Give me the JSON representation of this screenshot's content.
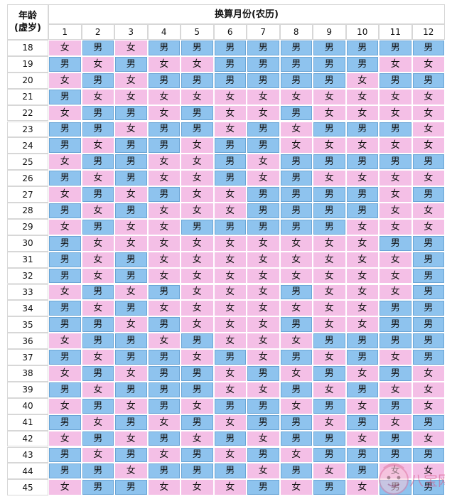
{
  "header": {
    "age_title_line1": "年龄",
    "age_title_line2": "(虚岁)",
    "month_title": "换算月份(农历)"
  },
  "months": [
    "1",
    "2",
    "3",
    "4",
    "5",
    "6",
    "7",
    "8",
    "9",
    "10",
    "11",
    "12"
  ],
  "rows": [
    {
      "age": "18",
      "cells": [
        "女",
        "男",
        "女",
        "男",
        "男",
        "男",
        "男",
        "男",
        "男",
        "男",
        "男",
        "男"
      ]
    },
    {
      "age": "19",
      "cells": [
        "男",
        "女",
        "男",
        "女",
        "女",
        "男",
        "男",
        "男",
        "男",
        "男",
        "女",
        "女"
      ]
    },
    {
      "age": "20",
      "cells": [
        "女",
        "男",
        "女",
        "男",
        "男",
        "男",
        "男",
        "男",
        "男",
        "女",
        "男",
        "男"
      ]
    },
    {
      "age": "21",
      "cells": [
        "男",
        "女",
        "女",
        "女",
        "女",
        "女",
        "女",
        "女",
        "女",
        "女",
        "女",
        "女"
      ]
    },
    {
      "age": "22",
      "cells": [
        "女",
        "男",
        "男",
        "女",
        "男",
        "女",
        "女",
        "男",
        "女",
        "女",
        "女",
        "女"
      ]
    },
    {
      "age": "23",
      "cells": [
        "男",
        "男",
        "女",
        "男",
        "男",
        "女",
        "男",
        "女",
        "男",
        "男",
        "男",
        "女"
      ]
    },
    {
      "age": "24",
      "cells": [
        "男",
        "女",
        "男",
        "男",
        "女",
        "男",
        "男",
        "女",
        "女",
        "女",
        "女",
        "女"
      ]
    },
    {
      "age": "25",
      "cells": [
        "女",
        "男",
        "男",
        "女",
        "女",
        "男",
        "女",
        "男",
        "男",
        "男",
        "男",
        "男"
      ]
    },
    {
      "age": "26",
      "cells": [
        "男",
        "女",
        "男",
        "女",
        "女",
        "男",
        "女",
        "男",
        "女",
        "女",
        "女",
        "女"
      ]
    },
    {
      "age": "27",
      "cells": [
        "女",
        "男",
        "女",
        "男",
        "女",
        "女",
        "男",
        "男",
        "男",
        "男",
        "女",
        "男"
      ]
    },
    {
      "age": "28",
      "cells": [
        "男",
        "女",
        "男",
        "女",
        "女",
        "女",
        "男",
        "男",
        "男",
        "男",
        "女",
        "女"
      ]
    },
    {
      "age": "29",
      "cells": [
        "女",
        "男",
        "女",
        "女",
        "男",
        "男",
        "男",
        "男",
        "男",
        "女",
        "女",
        "女"
      ]
    },
    {
      "age": "30",
      "cells": [
        "男",
        "女",
        "女",
        "女",
        "女",
        "女",
        "女",
        "女",
        "女",
        "女",
        "男",
        "男"
      ]
    },
    {
      "age": "31",
      "cells": [
        "男",
        "女",
        "男",
        "女",
        "女",
        "女",
        "女",
        "女",
        "女",
        "女",
        "女",
        "男"
      ]
    },
    {
      "age": "32",
      "cells": [
        "男",
        "女",
        "男",
        "女",
        "女",
        "女",
        "女",
        "女",
        "女",
        "女",
        "女",
        "男"
      ]
    },
    {
      "age": "33",
      "cells": [
        "女",
        "男",
        "女",
        "男",
        "女",
        "女",
        "女",
        "男",
        "女",
        "女",
        "女",
        "男"
      ]
    },
    {
      "age": "34",
      "cells": [
        "男",
        "女",
        "男",
        "女",
        "女",
        "女",
        "女",
        "女",
        "女",
        "女",
        "男",
        "男"
      ]
    },
    {
      "age": "35",
      "cells": [
        "男",
        "男",
        "女",
        "男",
        "女",
        "女",
        "女",
        "男",
        "女",
        "女",
        "男",
        "男"
      ]
    },
    {
      "age": "36",
      "cells": [
        "女",
        "男",
        "男",
        "女",
        "男",
        "女",
        "女",
        "女",
        "男",
        "男",
        "男",
        "男"
      ]
    },
    {
      "age": "37",
      "cells": [
        "男",
        "女",
        "男",
        "男",
        "女",
        "男",
        "女",
        "男",
        "女",
        "男",
        "女",
        "男"
      ]
    },
    {
      "age": "38",
      "cells": [
        "女",
        "男",
        "女",
        "男",
        "男",
        "女",
        "男",
        "女",
        "男",
        "女",
        "男",
        "女"
      ]
    },
    {
      "age": "39",
      "cells": [
        "男",
        "女",
        "男",
        "男",
        "男",
        "女",
        "女",
        "男",
        "女",
        "男",
        "女",
        "女"
      ]
    },
    {
      "age": "40",
      "cells": [
        "女",
        "男",
        "女",
        "男",
        "女",
        "男",
        "男",
        "女",
        "男",
        "女",
        "男",
        "女"
      ]
    },
    {
      "age": "41",
      "cells": [
        "男",
        "女",
        "男",
        "女",
        "男",
        "女",
        "男",
        "男",
        "女",
        "男",
        "女",
        "男"
      ]
    },
    {
      "age": "42",
      "cells": [
        "女",
        "男",
        "女",
        "男",
        "女",
        "男",
        "女",
        "男",
        "男",
        "女",
        "男",
        "女"
      ]
    },
    {
      "age": "43",
      "cells": [
        "男",
        "女",
        "男",
        "女",
        "男",
        "女",
        "男",
        "女",
        "男",
        "男",
        "男",
        "男"
      ]
    },
    {
      "age": "44",
      "cells": [
        "男",
        "男",
        "女",
        "男",
        "男",
        "男",
        "女",
        "男",
        "女",
        "男",
        "女",
        "女"
      ]
    },
    {
      "age": "45",
      "cells": [
        "女",
        "男",
        "男",
        "女",
        "女",
        "女",
        "男",
        "女",
        "男",
        "女",
        "男",
        "男"
      ]
    }
  ],
  "colors": {
    "male_cell": "#8ec3ee",
    "female_cell": "#f4bfe6"
  },
  "watermark": {
    "icon": "babytree-logo-icon",
    "text": "八宝网"
  }
}
